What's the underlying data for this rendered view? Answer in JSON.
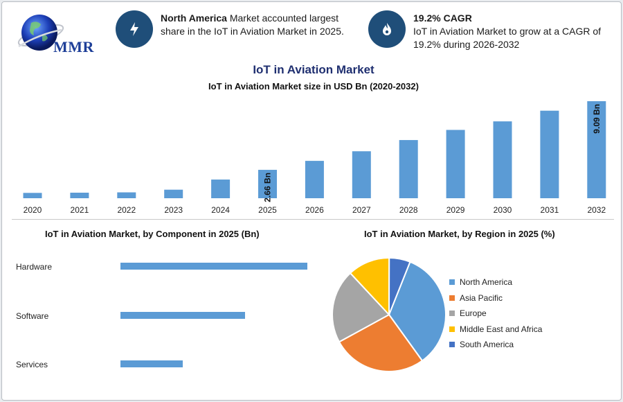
{
  "logo": {
    "text": "MMR"
  },
  "info_boxes": [
    {
      "icon": "lightning-icon",
      "bold": "North America",
      "text_line1": " Market accounted largest",
      "text_line2": "share in the IoT in Aviation Market in 2025."
    },
    {
      "icon": "flame-icon",
      "bold": "19.2% CAGR",
      "text_line1": "IoT in Aviation Market to grow at a CAGR of",
      "text_line2": "19.2% during 2026-2032"
    }
  ],
  "main_title": "IoT in Aviation Market",
  "sections": {
    "component_title": "IoT in Aviation Market, by Component in 2025 (Bn)",
    "region_title": "IoT in Aviation Market, by Region in 2025 (%)"
  },
  "chart_data": [
    {
      "type": "bar",
      "title": "IoT in Aviation Market size in USD Bn (2020-2032)",
      "categories": [
        "2020",
        "2021",
        "2022",
        "2023",
        "2024",
        "2025",
        "2026",
        "2027",
        "2028",
        "2029",
        "2030",
        "2031",
        "2032"
      ],
      "values": [
        0.5,
        0.52,
        0.55,
        0.8,
        1.75,
        2.66,
        3.5,
        4.4,
        5.45,
        6.4,
        7.2,
        8.2,
        9.09
      ],
      "data_labels": {
        "5": "2.66 Bn",
        "12": "9.09 Bn"
      },
      "color": "#5b9bd5",
      "ylim": [
        0,
        10
      ]
    },
    {
      "type": "bar",
      "orientation": "horizontal",
      "categories": [
        "Hardware",
        "Software",
        "Services"
      ],
      "values": [
        1.35,
        0.9,
        0.45
      ],
      "color": "#5b9bd5"
    },
    {
      "type": "pie",
      "labels": [
        "North America",
        "Asia Pacific",
        "Europe",
        "Middle East and Africa",
        "South America"
      ],
      "values": [
        34,
        27,
        21,
        12,
        6
      ],
      "colors": [
        "#5b9bd5",
        "#ed7d31",
        "#a5a5a5",
        "#ffc000",
        "#4472c4"
      ]
    }
  ]
}
